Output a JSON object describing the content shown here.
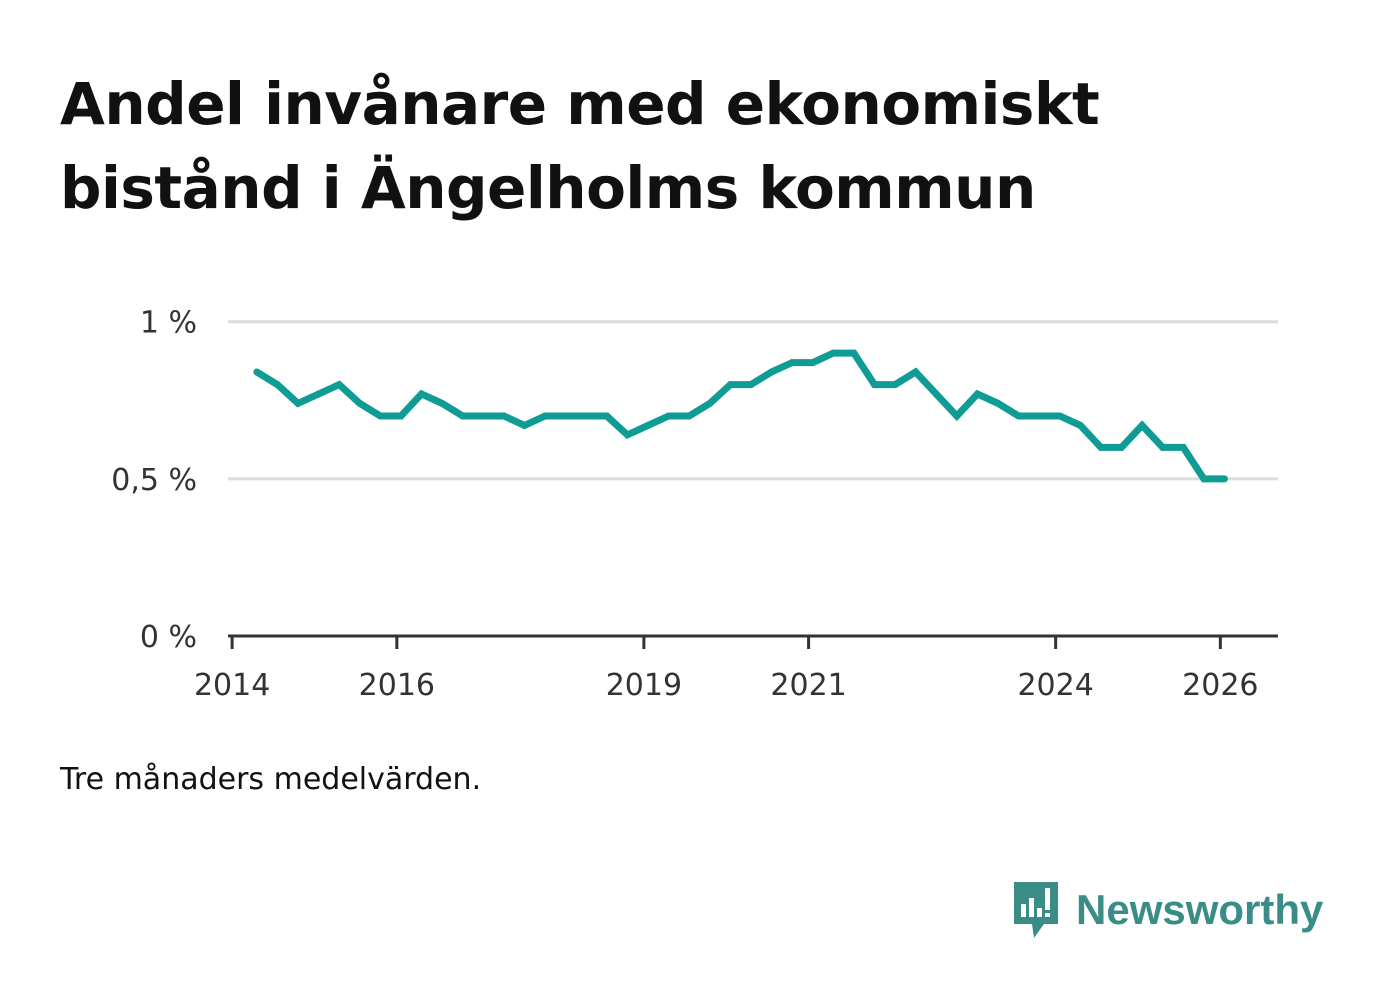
{
  "title": "Andel invånare med ekonomiskt bistånd i Ängelholms kommun",
  "note": "Tre månaders medelvärden.",
  "brand": "Newsworthy",
  "colors": {
    "line": "#0f9c94",
    "grid": "#dcdcdc",
    "axis": "#333333",
    "text": "#333333",
    "brand": "#3a8c86"
  },
  "chart_data": {
    "type": "line",
    "title": "Andel invånare med ekonomiskt bistånd i Ängelholms kommun",
    "xlabel": "",
    "ylabel": "",
    "ylim": [
      0,
      1.05
    ],
    "xlim": [
      2013.95,
      2026.7
    ],
    "y_ticks": [
      {
        "value": 0,
        "label": "0 %"
      },
      {
        "value": 0.5,
        "label": "0,5 %"
      },
      {
        "value": 1,
        "label": "1 %"
      }
    ],
    "x_ticks": [
      {
        "value": 2014,
        "label": "2014"
      },
      {
        "value": 2016,
        "label": "2016"
      },
      {
        "value": 2019,
        "label": "2019"
      },
      {
        "value": 2021,
        "label": "2021"
      },
      {
        "value": 2024,
        "label": "2024"
      },
      {
        "value": 2026,
        "label": "2026"
      }
    ],
    "grid": true,
    "series": [
      {
        "name": "Andel invånare med ekonomiskt bistånd",
        "x": [
          2014.3,
          2014.55,
          2014.8,
          2015.05,
          2015.3,
          2015.55,
          2015.8,
          2016.05,
          2016.3,
          2016.55,
          2016.8,
          2017.05,
          2017.3,
          2017.55,
          2017.8,
          2018.05,
          2018.3,
          2018.55,
          2018.8,
          2019.05,
          2019.3,
          2019.55,
          2019.8,
          2020.05,
          2020.3,
          2020.55,
          2020.8,
          2021.05,
          2021.3,
          2021.55,
          2021.8,
          2022.05,
          2022.3,
          2022.55,
          2022.8,
          2023.05,
          2023.3,
          2023.55,
          2023.8,
          2024.05,
          2024.3,
          2024.55,
          2024.8,
          2025.05,
          2025.3,
          2025.55,
          2025.8,
          2026.05
        ],
        "values": [
          0.84,
          0.8,
          0.74,
          0.77,
          0.8,
          0.74,
          0.7,
          0.7,
          0.77,
          0.74,
          0.7,
          0.7,
          0.7,
          0.67,
          0.7,
          0.7,
          0.7,
          0.7,
          0.64,
          0.67,
          0.7,
          0.7,
          0.74,
          0.8,
          0.8,
          0.84,
          0.87,
          0.87,
          0.9,
          0.9,
          0.8,
          0.8,
          0.84,
          0.77,
          0.7,
          0.77,
          0.74,
          0.7,
          0.7,
          0.7,
          0.67,
          0.6,
          0.6,
          0.67,
          0.6,
          0.6,
          0.5,
          0.5
        ]
      }
    ]
  }
}
